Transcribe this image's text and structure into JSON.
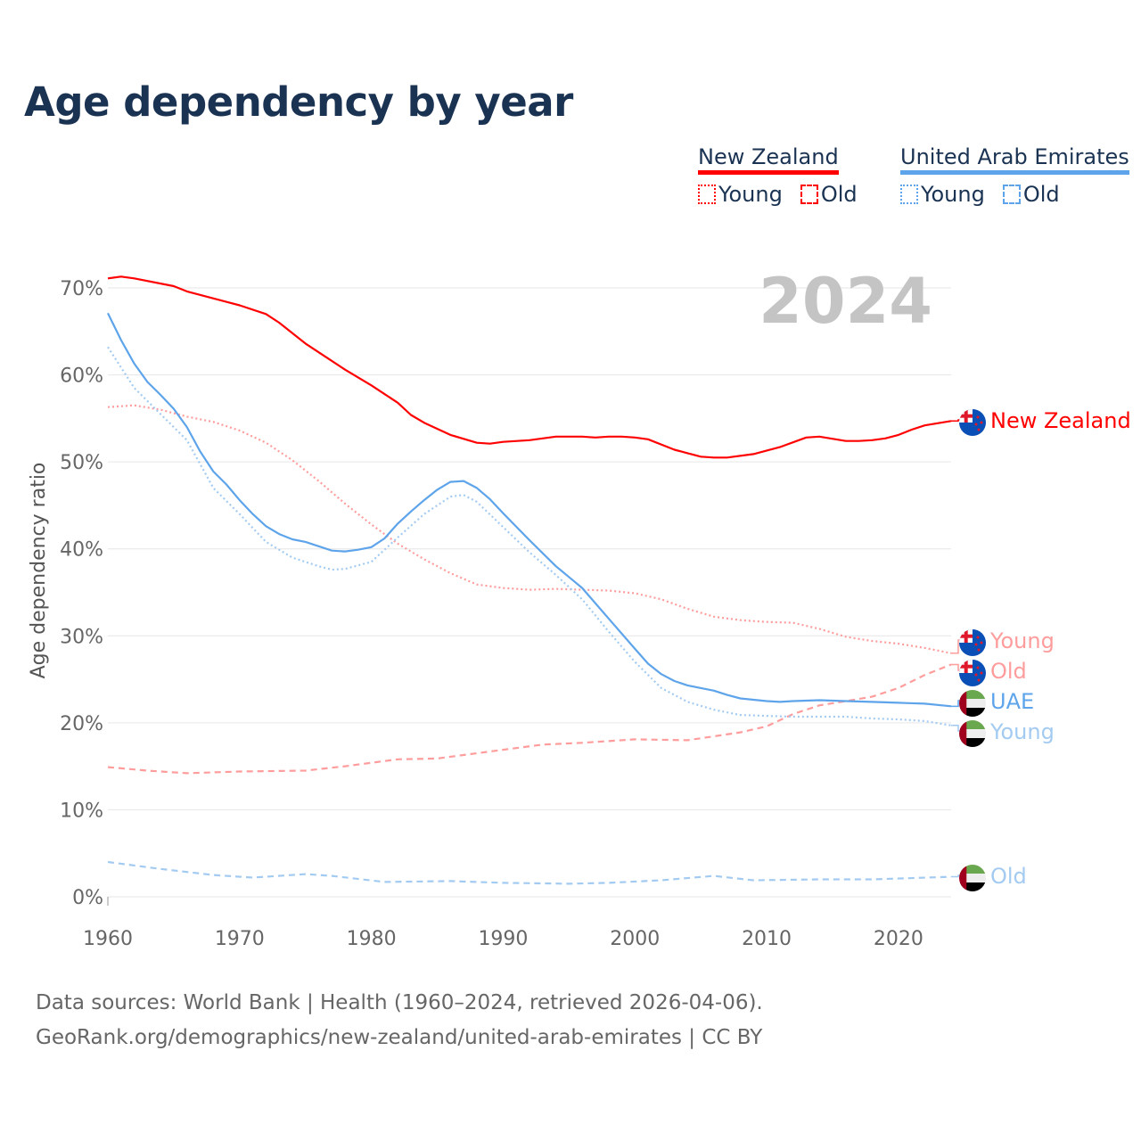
{
  "title": "Age dependency by year",
  "legend": [
    {
      "country": "New Zealand",
      "color": "#ff0000",
      "items": [
        {
          "label": "Young",
          "style": "dotted"
        },
        {
          "label": "Old",
          "style": "dashed"
        }
      ]
    },
    {
      "country": "United Arab Emirates",
      "color": "#5ea4ea",
      "items": [
        {
          "label": "Young",
          "style": "dotted"
        },
        {
          "label": "Old",
          "style": "dashed"
        }
      ]
    }
  ],
  "year_badge": "2024",
  "source_lines": [
    "Data sources: World Bank | Health (1960–2024, retrieved 2026-04-06).",
    "GeoRank.org/demographics/new-zealand/united-arab-emirates | CC BY"
  ],
  "chart_data": {
    "type": "line",
    "title": "Age dependency by year",
    "xlabel": "",
    "ylabel": "Age dependency ratio",
    "xlim": [
      1960,
      2024
    ],
    "ylim": [
      0,
      70
    ],
    "xticks": [
      1960,
      1970,
      1980,
      1990,
      2000,
      2010,
      2020
    ],
    "xtick_labels": [
      "1960",
      "1970",
      "1980",
      "1990",
      "2000",
      "2010",
      "2020"
    ],
    "yticks": [
      0,
      10,
      20,
      30,
      40,
      50,
      60,
      70
    ],
    "ytick_labels": [
      "0%",
      "10%",
      "20%",
      "30%",
      "40%",
      "50%",
      "60%",
      "70%"
    ],
    "grid": true,
    "legend_position": "top-right",
    "series": [
      {
        "name": "New Zealand",
        "end_label": "New Zealand",
        "flag": "nz",
        "color": "#ff0000",
        "dash": "solid",
        "x": [
          1960,
          1961,
          1962,
          1965,
          1966,
          1970,
          1972,
          1973,
          1975,
          1976,
          1978,
          1980,
          1982,
          1983,
          1984,
          1986,
          1988,
          1989,
          1990,
          1992,
          1994,
          1996,
          1997,
          1998,
          1999,
          2000,
          2001,
          2003,
          2004,
          2005,
          2006,
          2007,
          2009,
          2011,
          2013,
          2014,
          2016,
          2017,
          2018,
          2019,
          2020,
          2021,
          2022,
          2024
        ],
        "y": [
          71.1,
          71.3,
          71.1,
          70.2,
          69.6,
          68.0,
          67.0,
          66.0,
          63.6,
          62.6,
          60.6,
          58.8,
          56.8,
          55.4,
          54.5,
          53.1,
          52.2,
          52.1,
          52.3,
          52.5,
          52.9,
          52.9,
          52.8,
          52.9,
          52.9,
          52.8,
          52.6,
          51.4,
          51.0,
          50.6,
          50.5,
          50.5,
          50.9,
          51.7,
          52.8,
          52.9,
          52.4,
          52.4,
          52.5,
          52.7,
          53.1,
          53.7,
          54.2,
          54.7
        ]
      },
      {
        "name": "New Zealand Young",
        "end_label": "Young",
        "flag": "nz",
        "color": "#ff9c9c",
        "dash": "dotted",
        "x": [
          1960,
          1962,
          1964,
          1966,
          1968,
          1970,
          1972,
          1974,
          1976,
          1978,
          1980,
          1982,
          1984,
          1986,
          1988,
          1990,
          1992,
          1994,
          1996,
          1998,
          2000,
          2002,
          2004,
          2006,
          2008,
          2010,
          2012,
          2014,
          2016,
          2018,
          2020,
          2022,
          2024
        ],
        "y": [
          56.3,
          56.5,
          56.0,
          55.2,
          54.6,
          53.6,
          52.2,
          50.2,
          47.8,
          45.2,
          42.8,
          40.6,
          38.8,
          37.2,
          35.9,
          35.5,
          35.3,
          35.4,
          35.3,
          35.2,
          34.9,
          34.2,
          33.1,
          32.2,
          31.8,
          31.6,
          31.5,
          30.8,
          29.9,
          29.4,
          29.1,
          28.6,
          28.0
        ]
      },
      {
        "name": "New Zealand Old",
        "end_label": "Old",
        "flag": "nz",
        "color": "#ff9c9c",
        "dash": "dashed",
        "x": [
          1960,
          1963,
          1966,
          1970,
          1975,
          1978,
          1982,
          1985,
          1990,
          1993,
          1996,
          2000,
          2004,
          2008,
          2010,
          2012,
          2014,
          2016,
          2018,
          2020,
          2022,
          2024
        ],
        "y": [
          14.9,
          14.5,
          14.2,
          14.4,
          14.5,
          15.0,
          15.8,
          15.9,
          16.9,
          17.5,
          17.7,
          18.1,
          18.0,
          18.9,
          19.6,
          21.0,
          22.0,
          22.5,
          23.0,
          24.0,
          25.5,
          26.7
        ]
      },
      {
        "name": "United Arab Emirates",
        "end_label": "UAE",
        "flag": "uae",
        "color": "#5ea4ea",
        "dash": "solid",
        "x": [
          1960,
          1961,
          1962,
          1963,
          1964,
          1965,
          1966,
          1967,
          1968,
          1969,
          1970,
          1971,
          1972,
          1973,
          1974,
          1975,
          1976,
          1977,
          1978,
          1979,
          1980,
          1981,
          1982,
          1983,
          1984,
          1985,
          1986,
          1987,
          1988,
          1989,
          1990,
          1992,
          1994,
          1996,
          1998,
          2000,
          2001,
          2002,
          2003,
          2004,
          2006,
          2007,
          2008,
          2010,
          2011,
          2012,
          2014,
          2016,
          2018,
          2020,
          2022,
          2024
        ],
        "y": [
          67.1,
          64.0,
          61.3,
          59.2,
          57.7,
          56.1,
          54.0,
          51.2,
          48.9,
          47.4,
          45.6,
          44.0,
          42.6,
          41.7,
          41.1,
          40.8,
          40.3,
          39.8,
          39.7,
          39.9,
          40.2,
          41.2,
          42.9,
          44.3,
          45.6,
          46.8,
          47.7,
          47.8,
          47.0,
          45.7,
          44.1,
          41.0,
          38.0,
          35.5,
          32.0,
          28.5,
          26.8,
          25.6,
          24.8,
          24.3,
          23.7,
          23.2,
          22.8,
          22.5,
          22.4,
          22.5,
          22.6,
          22.5,
          22.4,
          22.3,
          22.2,
          21.9
        ]
      },
      {
        "name": "United Arab Emirates Young",
        "end_label": "Young",
        "flag": "uae",
        "color": "#a3cbf2",
        "dash": "dotted",
        "x": [
          1960,
          1962,
          1964,
          1966,
          1968,
          1970,
          1972,
          1974,
          1976,
          1977,
          1978,
          1980,
          1982,
          1984,
          1986,
          1987,
          1988,
          1990,
          1992,
          1994,
          1996,
          1998,
          2000,
          2002,
          2004,
          2006,
          2008,
          2010,
          2012,
          2014,
          2016,
          2018,
          2020,
          2022,
          2024
        ],
        "y": [
          63.2,
          58.5,
          55.5,
          52.5,
          47.0,
          44.0,
          40.8,
          39.0,
          38.0,
          37.6,
          37.7,
          38.5,
          41.3,
          44.0,
          46.0,
          46.2,
          45.4,
          42.5,
          39.6,
          37.0,
          34.2,
          30.5,
          27.0,
          24.0,
          22.4,
          21.5,
          20.9,
          20.8,
          20.7,
          20.7,
          20.7,
          20.5,
          20.4,
          20.2,
          19.7
        ]
      },
      {
        "name": "United Arab Emirates Old",
        "end_label": "Old",
        "flag": "uae",
        "color": "#a3cbf2",
        "dash": "dashed",
        "x": [
          1960,
          1964,
          1968,
          1971,
          1975,
          1977,
          1981,
          1986,
          1990,
          1995,
          1998,
          2002,
          2006,
          2009,
          2014,
          2018,
          2024
        ],
        "y": [
          4.0,
          3.2,
          2.5,
          2.2,
          2.6,
          2.4,
          1.7,
          1.8,
          1.6,
          1.5,
          1.6,
          1.9,
          2.4,
          1.9,
          2.0,
          2.0,
          2.3
        ]
      }
    ]
  }
}
